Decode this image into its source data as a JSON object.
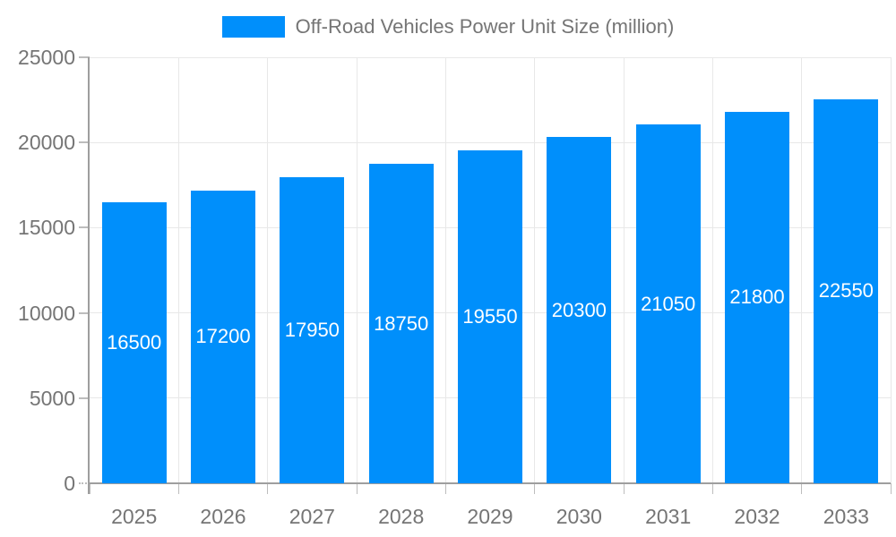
{
  "legend": {
    "position": "top-center",
    "swatch_color": "#008ffb"
  },
  "chart_data": {
    "type": "bar",
    "title": "Off-Road Vehicles Power Unit Size (million)",
    "categories": [
      "2025",
      "2026",
      "2027",
      "2028",
      "2029",
      "2030",
      "2031",
      "2032",
      "2033"
    ],
    "values": [
      16500,
      17200,
      17950,
      18750,
      19550,
      20300,
      21050,
      21800,
      22550
    ],
    "xlabel": "",
    "ylabel": "",
    "ylim": [
      0,
      25000
    ],
    "yticks": [
      0,
      5000,
      10000,
      15000,
      20000,
      25000
    ],
    "grid": true,
    "legend_position": "top",
    "colors": {
      "bar": "#008ffb",
      "bar_label": "#ffffff",
      "axis_text": "#757575",
      "legend_text": "#757575",
      "gridline": "#e8e8e8",
      "axis_line": "#9e9e9e",
      "tick_line": "#bdbdbd"
    }
  }
}
